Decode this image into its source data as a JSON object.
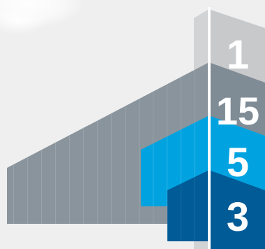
{
  "ranks": [
    {
      "label": "1",
      "color": "#c8c9cb"
    },
    {
      "label": "15",
      "color": "#7f8b95"
    },
    {
      "label": "5",
      "color": "#00a3e0"
    },
    {
      "label": "3",
      "color": "#005b96"
    }
  ]
}
